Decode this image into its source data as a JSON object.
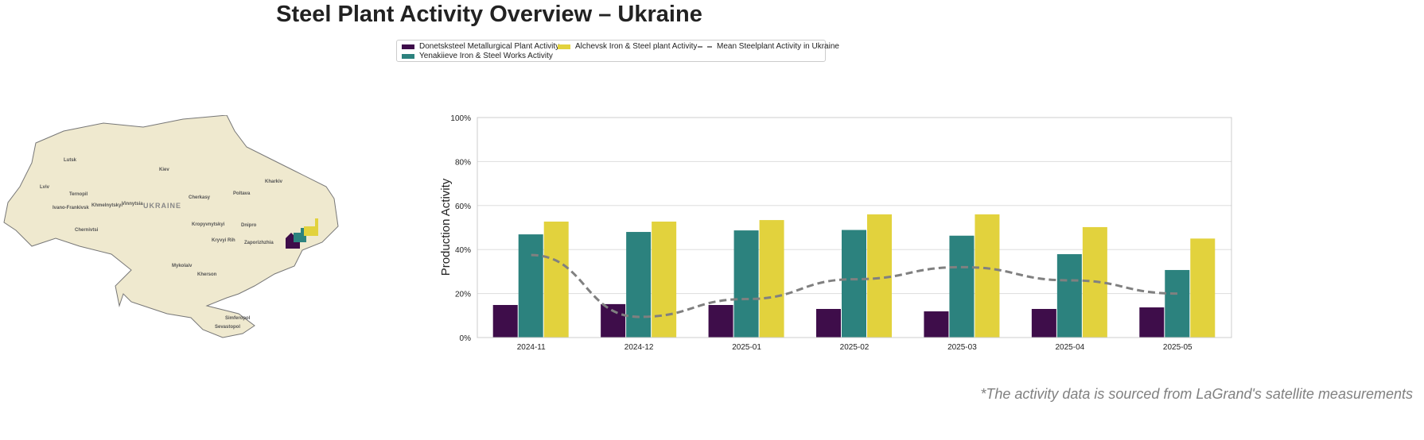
{
  "title": "Steel Plant Activity Overview – Ukraine",
  "footnote": "*The activity data is sourced from LaGrand's satellite measurements",
  "map": {
    "country_label": "UKRAINE",
    "cities": [
      "Lutsk",
      "Kiev",
      "Kharkiv",
      "Lviv",
      "Ternopil",
      "Khmelnytskyi",
      "Vinnytsia",
      "Cherkasy",
      "Poltava",
      "Ivano-Frankivsk",
      "Chernivtsi",
      "Kropyvnytskyi",
      "Dnipro",
      "Kryvyi Rih",
      "Zaporizhzhia",
      "Mykolaiv",
      "Kherson",
      "Simferopol",
      "Sevastopol"
    ]
  },
  "chart_data": {
    "type": "bar",
    "categories": [
      "2024-11",
      "2024-12",
      "2025-01",
      "2025-02",
      "2025-03",
      "2025-04",
      "2025-05"
    ],
    "series": [
      {
        "name": "Donetsksteel Metallurgical Plant Activity",
        "color": "#3e0d4a",
        "values": [
          14.8,
          15.2,
          14.8,
          13.0,
          11.9,
          13.0,
          13.7
        ]
      },
      {
        "name": "Yenakiieve Iron & Steel Works Activity",
        "color": "#2c827e",
        "values": [
          46.9,
          48.0,
          48.7,
          48.9,
          46.3,
          37.9,
          30.7
        ]
      },
      {
        "name": "Alchevsk Iron & Steel plant Activity",
        "color": "#e2d23d",
        "values": [
          52.7,
          52.7,
          53.4,
          56.0,
          56.0,
          50.2,
          45.0
        ]
      }
    ],
    "line": {
      "name": "Mean Steelplant Activity in Ukraine",
      "color": "#808080",
      "values": [
        37.5,
        9.4,
        17.5,
        26.5,
        32.0,
        26.0,
        20.0
      ]
    },
    "ylabel": "Production Activity",
    "xlabel": "",
    "ylim": [
      0,
      100
    ],
    "yticks": [
      "0%",
      "20%",
      "40%",
      "60%",
      "80%",
      "100%"
    ],
    "grid": true,
    "legend_placement": "top-center"
  }
}
